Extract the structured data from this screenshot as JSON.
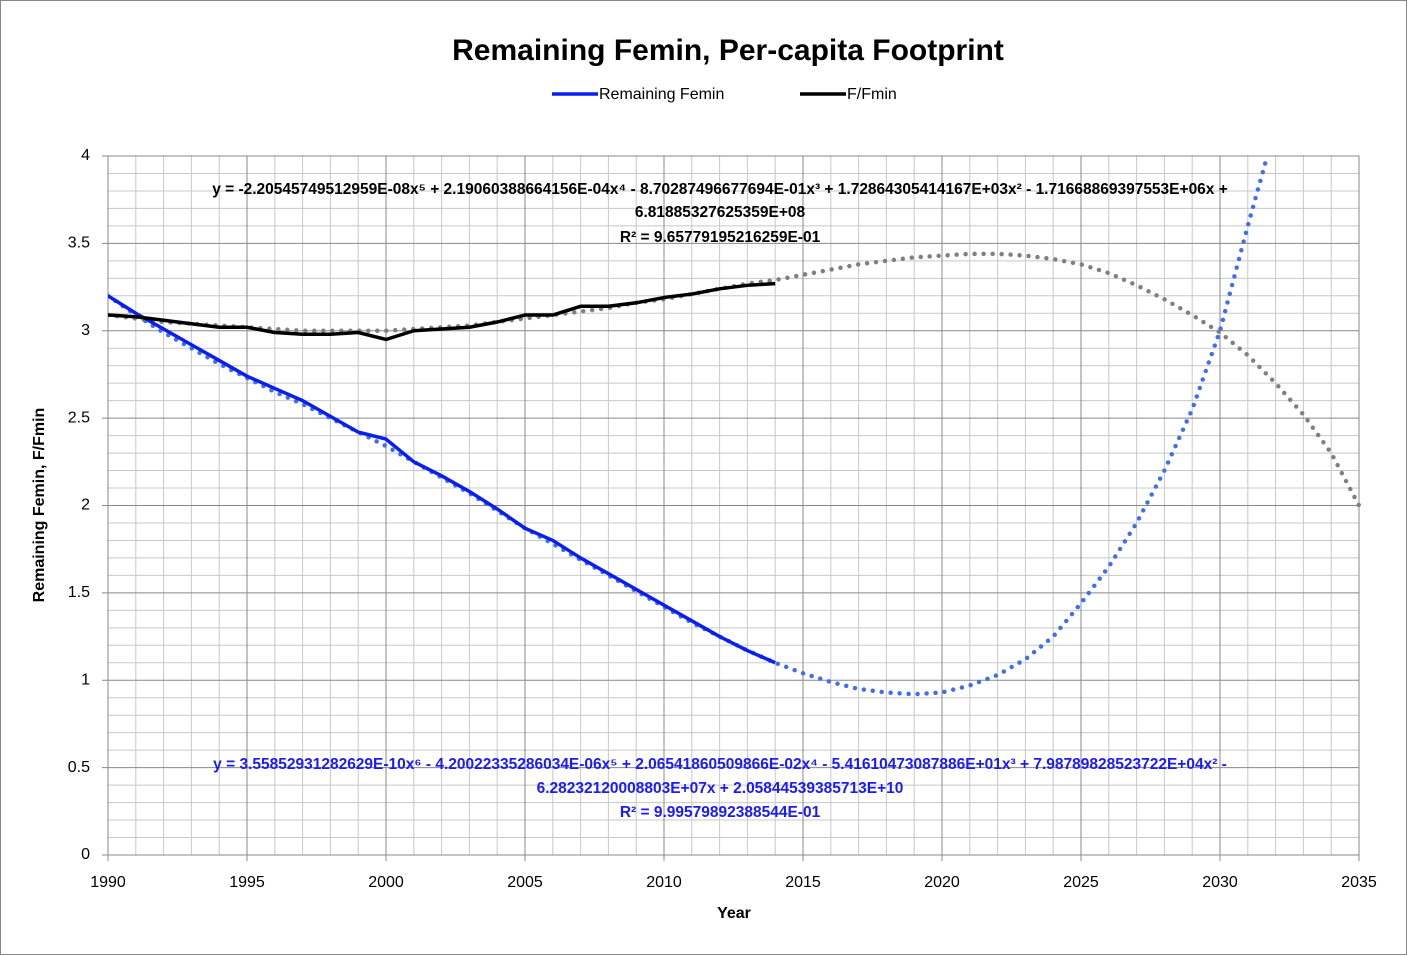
{
  "chart_data": {
    "type": "line",
    "title": "Remaining Femin, Per-capita Footprint",
    "xlabel": "Year",
    "ylabel": "Remaining Femin, F/Fmin",
    "x": [
      1990,
      1991,
      1992,
      1993,
      1994,
      1995,
      1996,
      1997,
      1998,
      1999,
      2000,
      2001,
      2002,
      2003,
      2004,
      2005,
      2006,
      2007,
      2008,
      2009,
      2010,
      2011,
      2012,
      2013,
      2014
    ],
    "series": [
      {
        "name": "Remaining Femin",
        "color": "#0a1ef0",
        "values": [
          3.2,
          3.1,
          3.01,
          2.92,
          2.83,
          2.74,
          2.67,
          2.6,
          2.51,
          2.42,
          2.38,
          2.25,
          2.17,
          2.08,
          1.98,
          1.87,
          1.8,
          1.7,
          1.61,
          1.52,
          1.43,
          1.34,
          1.25,
          1.17,
          1.1
        ]
      },
      {
        "name": "F/Fmin",
        "color": "#000000",
        "values": [
          3.09,
          3.08,
          3.06,
          3.04,
          3.02,
          3.02,
          2.99,
          2.98,
          2.98,
          2.99,
          2.95,
          3.0,
          3.01,
          3.02,
          3.05,
          3.09,
          3.09,
          3.14,
          3.14,
          3.16,
          3.19,
          3.21,
          3.24,
          3.26,
          3.27
        ]
      }
    ],
    "trendlines": [
      {
        "color": "#3f6ff0",
        "text_color": "#1a1aff",
        "equation": [
          "y = 3.55852931282629E-10x⁶ - 4.20022335286034E-06x⁵ + 2.06541860509866E-02x⁴ - 5.41610473087886E+01x³ + 7.98789828523722E+04x² -",
          "6.28232120008803E+07x + 2.05844539385713E+10"
        ],
        "r_squared": "R² = 9.99579892388544E-01",
        "x": [
          1990,
          1991,
          1992,
          1993,
          1994,
          1995,
          1996,
          1997,
          1998,
          1999,
          2000,
          2001,
          2002,
          2003,
          2004,
          2005,
          2006,
          2007,
          2008,
          2009,
          2010,
          2011,
          2012,
          2013,
          2014,
          2015,
          2016,
          2017,
          2018,
          2019,
          2020,
          2021,
          2022,
          2023,
          2024,
          2025,
          2026,
          2027,
          2028,
          2029,
          2030,
          2031,
          2031.7
        ],
        "values": [
          3.2,
          3.09,
          2.99,
          2.9,
          2.81,
          2.73,
          2.65,
          2.58,
          2.5,
          2.42,
          2.34,
          2.25,
          2.16,
          2.07,
          1.97,
          1.87,
          1.78,
          1.69,
          1.6,
          1.51,
          1.42,
          1.33,
          1.25,
          1.17,
          1.1,
          1.04,
          0.99,
          0.95,
          0.93,
          0.92,
          0.93,
          0.97,
          1.03,
          1.12,
          1.25,
          1.44,
          1.65,
          1.9,
          2.2,
          2.55,
          3.0,
          3.6,
          4.0
        ]
      },
      {
        "color": "#808080",
        "text_color": "#000000",
        "equation": [
          "y = -2.20545749512959E-08x⁵ + 2.19060388664156E-04x⁴ - 8.70287496677694E-01x³ + 1.72864305414167E+03x² - 1.71668869397553E+06x +",
          "6.81885327625359E+08"
        ],
        "r_squared": "R² = 9.65779195216259E-01",
        "x": [
          1990,
          1991,
          1992,
          1993,
          1994,
          1995,
          1996,
          1997,
          1998,
          1999,
          2000,
          2001,
          2002,
          2003,
          2004,
          2005,
          2006,
          2007,
          2008,
          2009,
          2010,
          2011,
          2012,
          2013,
          2014,
          2015,
          2016,
          2017,
          2018,
          2019,
          2020,
          2021,
          2022,
          2023,
          2024,
          2025,
          2026,
          2027,
          2028,
          2029,
          2030,
          2031,
          2032,
          2033,
          2034,
          2035
        ],
        "values": [
          3.09,
          3.07,
          3.05,
          3.04,
          3.03,
          3.02,
          3.01,
          3.0,
          3.0,
          3.0,
          3.0,
          3.01,
          3.02,
          3.03,
          3.05,
          3.07,
          3.09,
          3.11,
          3.13,
          3.16,
          3.18,
          3.21,
          3.24,
          3.27,
          3.29,
          3.32,
          3.35,
          3.38,
          3.4,
          3.42,
          3.43,
          3.44,
          3.44,
          3.43,
          3.41,
          3.38,
          3.33,
          3.26,
          3.18,
          3.09,
          2.99,
          2.86,
          2.7,
          2.52,
          2.3,
          2.0
        ]
      }
    ],
    "xlim": [
      1990,
      2035
    ],
    "xticks": [
      1990,
      1995,
      2000,
      2005,
      2010,
      2015,
      2020,
      2025,
      2030,
      2035
    ],
    "ylim": [
      0,
      4
    ],
    "yticks": [
      0,
      {
        "value": 0.5,
        "label": "0.5"
      },
      1,
      {
        "value": 1.5,
        "label": "1.5"
      },
      2,
      {
        "value": 2.5,
        "label": "2.5"
      },
      3,
      {
        "value": 3.5,
        "label": "3.5"
      },
      4
    ],
    "grid": true,
    "minor_grid": true,
    "legend": "top"
  }
}
